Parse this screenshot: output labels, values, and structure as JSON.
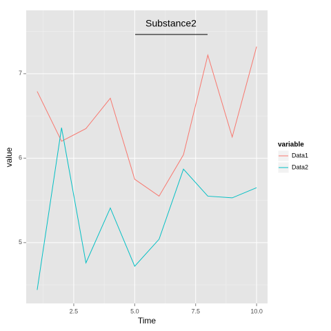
{
  "chart_data": {
    "type": "line",
    "title": "Substance2",
    "x_label": "Time",
    "y_label": "value",
    "x": [
      1,
      2,
      3,
      4,
      5,
      6,
      7,
      8,
      9,
      10
    ],
    "series": [
      {
        "name": "Data1",
        "color": "#F8766D",
        "values": [
          6.79,
          6.2,
          6.35,
          6.71,
          5.75,
          5.55,
          6.04,
          7.22,
          6.25,
          7.32
        ]
      },
      {
        "name": "Data2",
        "color": "#00BFC4",
        "values": [
          4.44,
          6.36,
          4.76,
          5.41,
          4.72,
          5.04,
          5.87,
          5.55,
          5.53,
          5.65
        ]
      }
    ],
    "xlim": [
      0.55,
      10.45
    ],
    "ylim": [
      4.28,
      7.75
    ],
    "xticks": [
      2.5,
      {
        "value": 5,
        "label": "5.0"
      },
      7.5,
      {
        "value": 10,
        "label": "10.0"
      }
    ],
    "yticks": [
      5,
      6,
      7
    ],
    "x_minor_ticks": [
      1.25,
      3.75,
      6.25,
      8.75
    ],
    "y_minor_ticks": [
      4.5,
      5.5,
      6.5,
      7.5
    ],
    "legend_title": "variable",
    "legend_position": "right",
    "grid": true
  }
}
